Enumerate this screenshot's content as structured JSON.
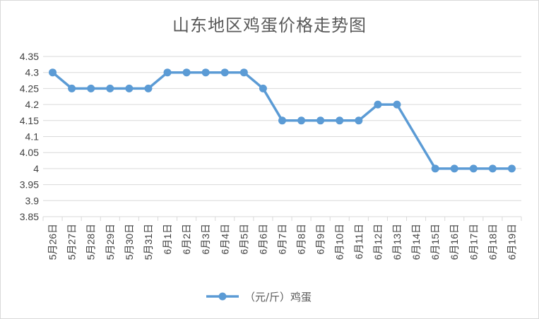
{
  "chart_data": {
    "type": "line",
    "title": "山东地区鸡蛋价格走势图",
    "xlabel": "",
    "ylabel": "",
    "categories": [
      "5月26日",
      "5月27日",
      "5月28日",
      "5月29日",
      "5月30日",
      "5月31日",
      "6月1日",
      "6月2日",
      "6月3日",
      "6月4日",
      "6月5日",
      "6月6日",
      "6月7日",
      "6月8日",
      "6月9日",
      "6月10日",
      "6月11日",
      "6月12日",
      "6月13日",
      "6月14日",
      "6月15日",
      "6月16日",
      "6月17日",
      "6月18日",
      "6月19日"
    ],
    "series": [
      {
        "name": "（元/斤）鸡蛋",
        "values": [
          4.3,
          4.25,
          4.25,
          4.25,
          4.25,
          4.25,
          4.3,
          4.3,
          4.3,
          4.3,
          4.3,
          4.25,
          4.15,
          4.15,
          4.15,
          4.15,
          4.15,
          4.2,
          4.2,
          null,
          4.0,
          4.0,
          4.0,
          4.0,
          4.0
        ]
      }
    ],
    "yticks": [
      "3.85",
      "3.9",
      "3.95",
      "4",
      "4.05",
      "4.1",
      "4.15",
      "4.2",
      "4.25",
      "4.3",
      "4.35"
    ],
    "ylim": [
      3.85,
      4.35
    ],
    "grid": true,
    "legend": "bottom",
    "line_color": "#5b9bd5"
  }
}
